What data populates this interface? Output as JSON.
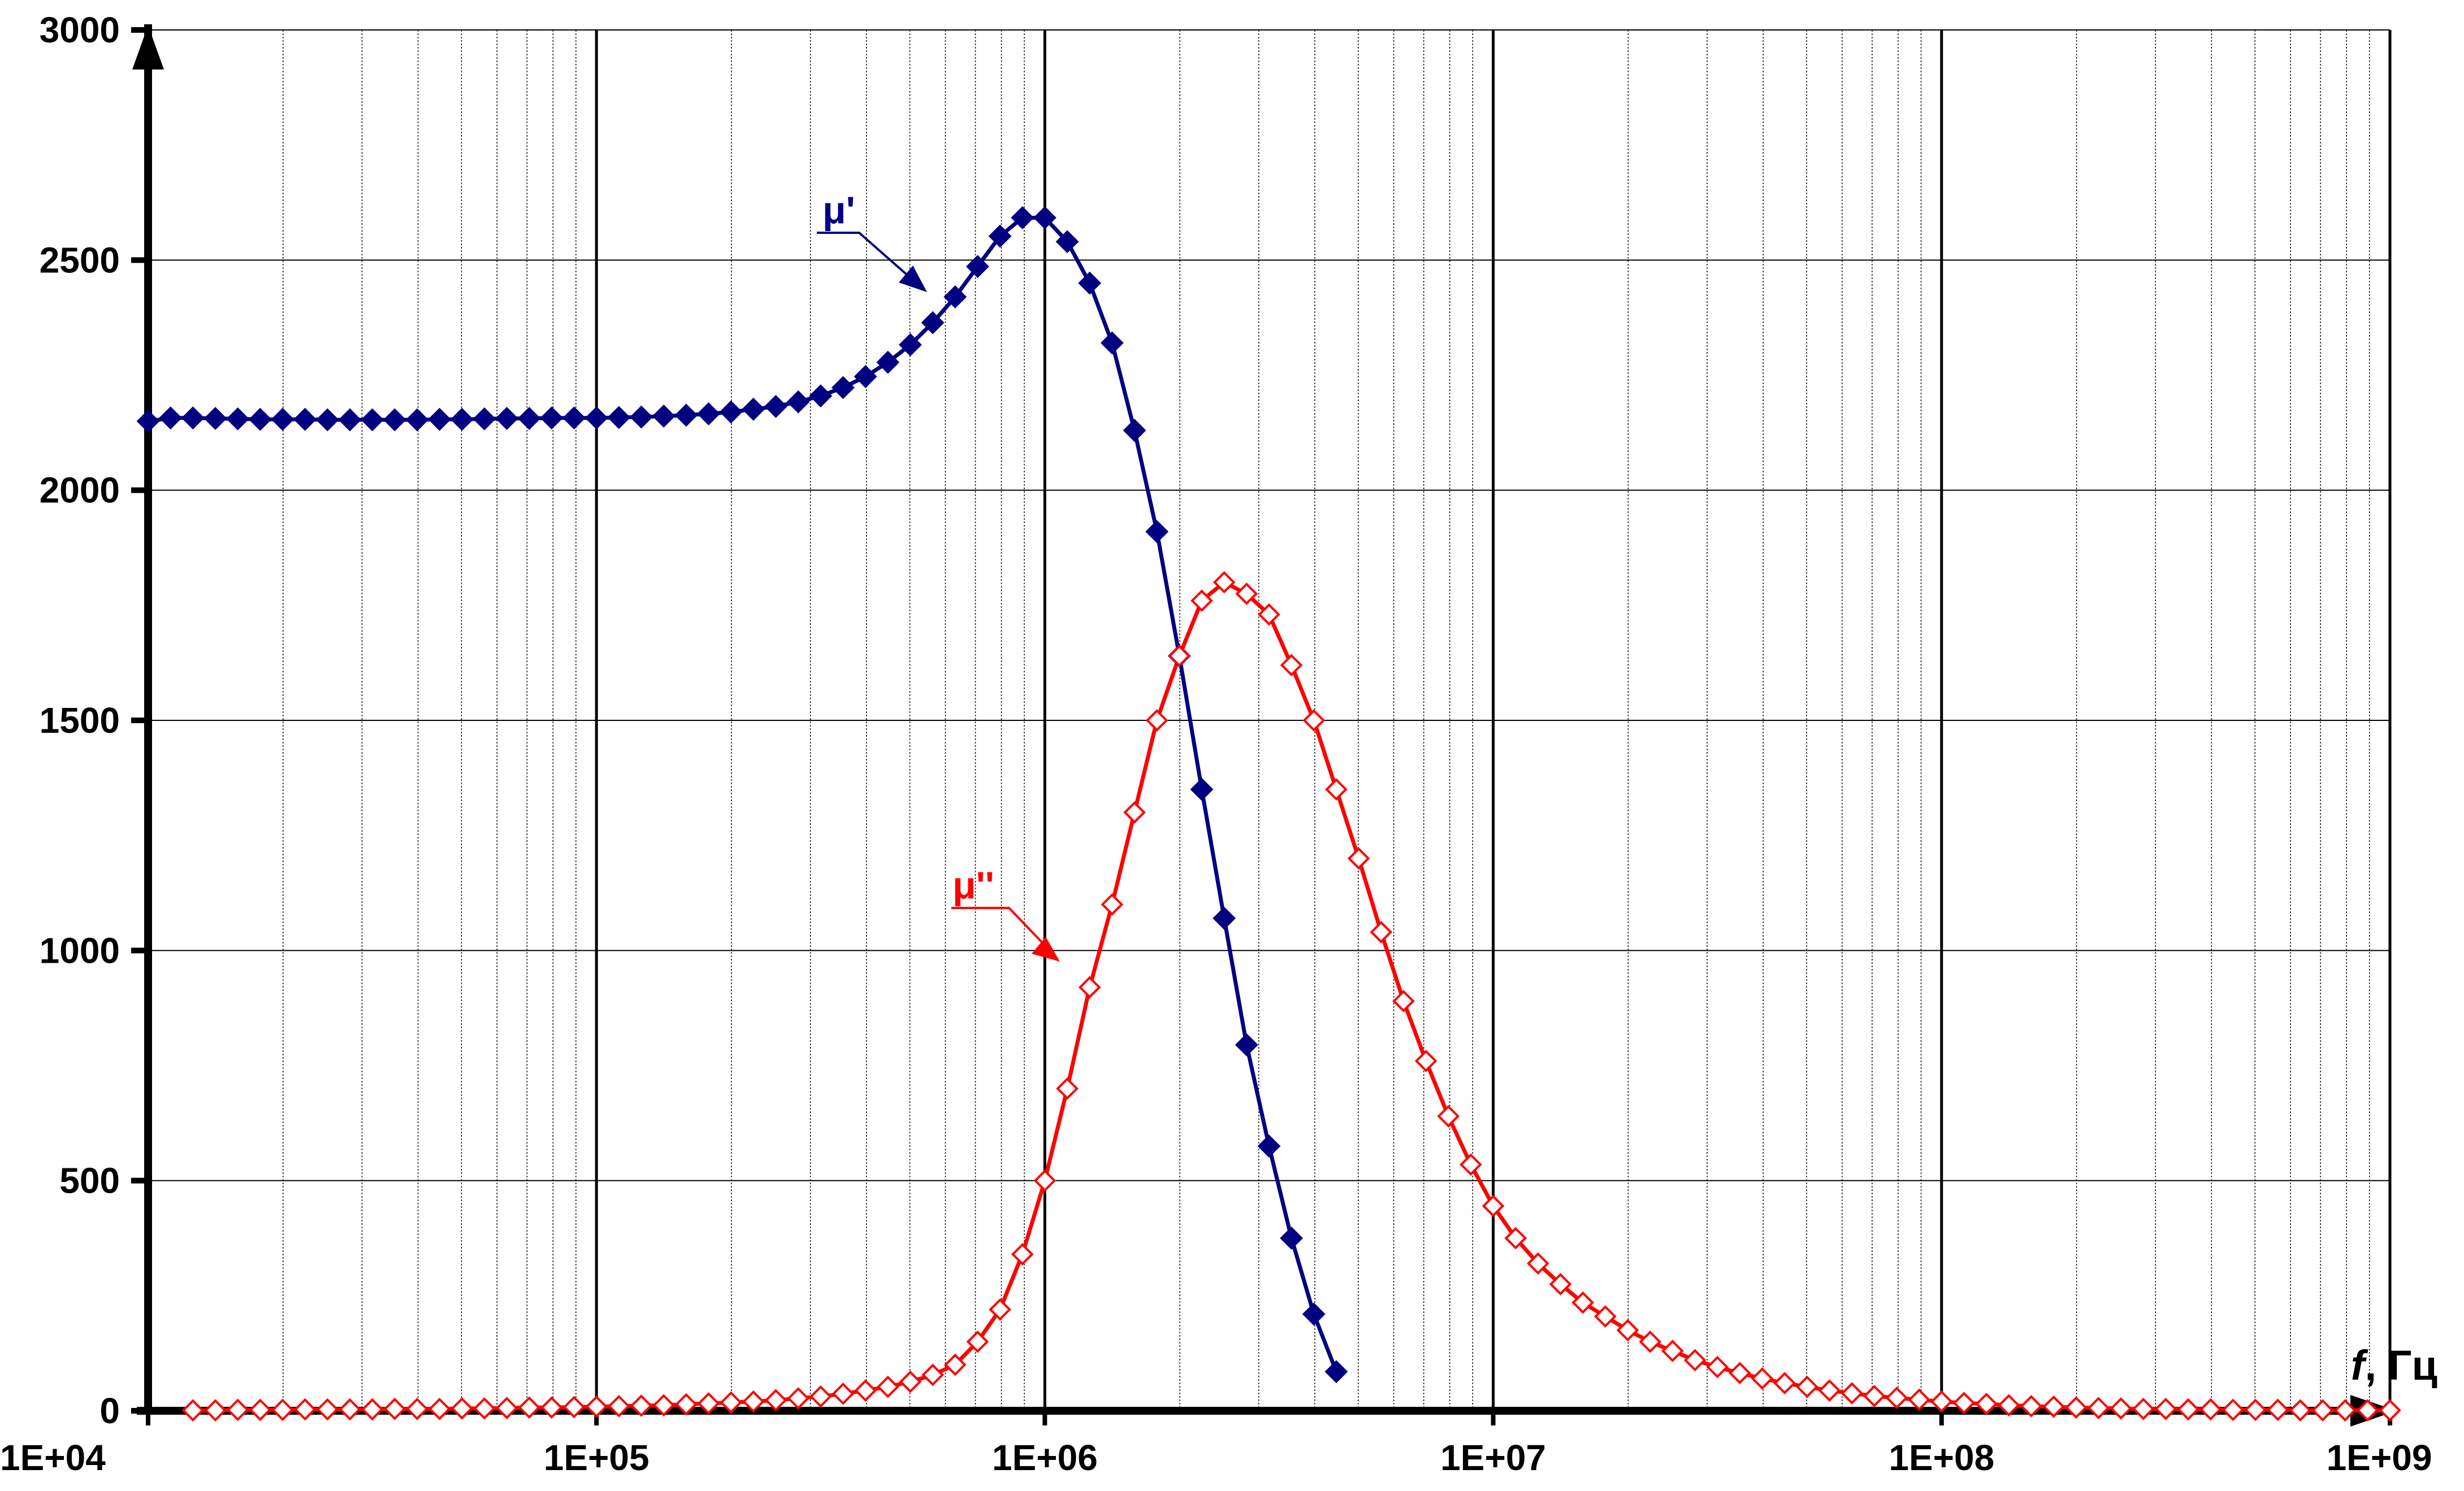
{
  "chart_data": {
    "type": "line",
    "title": "",
    "xlabel": "f, Гц",
    "xlabel_parts": {
      "italic": "f",
      "rest": ", Гц"
    },
    "ylabel": "",
    "x_scale": "log",
    "xlim": [
      10000,
      1000000000
    ],
    "ylim": [
      0,
      3000
    ],
    "x_tick_labels": [
      "1E+04",
      "1E+05",
      "1E+06",
      "1E+07",
      "1E+08",
      "1E+09"
    ],
    "x_tick_values": [
      10000,
      100000,
      1000000,
      10000000,
      100000000,
      1000000000
    ],
    "y_tick_labels": [
      "0",
      "500",
      "1000",
      "1500",
      "2000",
      "2500",
      "3000"
    ],
    "y_tick_values": [
      0,
      500,
      1000,
      1500,
      2000,
      2500,
      3000
    ],
    "grid": true,
    "legend": "none",
    "series": [
      {
        "name": "μ'",
        "color": "#000080",
        "marker": "filled-diamond",
        "x_log10": [
          4.0,
          4.05,
          4.1,
          4.15,
          4.2,
          4.25,
          4.3,
          4.35,
          4.4,
          4.45,
          4.5,
          4.55,
          4.6,
          4.65,
          4.7,
          4.75,
          4.8,
          4.85,
          4.9,
          4.95,
          5.0,
          5.05,
          5.1,
          5.15,
          5.2,
          5.25,
          5.3,
          5.35,
          5.4,
          5.45,
          5.5,
          5.55,
          5.6,
          5.65,
          5.7,
          5.75,
          5.8,
          5.85,
          5.9,
          5.95,
          6.0,
          6.05,
          6.1,
          6.15,
          6.2,
          6.25,
          6.3,
          6.35,
          6.4,
          6.45,
          6.5,
          6.55,
          6.6,
          6.65
        ],
        "values": [
          2150,
          2157,
          2157,
          2156,
          2155,
          2154,
          2154,
          2154,
          2153,
          2153,
          2153,
          2153,
          2153,
          2154,
          2154,
          2155,
          2156,
          2156,
          2157,
          2157,
          2157,
          2158,
          2159,
          2161,
          2163,
          2166,
          2170,
          2176,
          2182,
          2192,
          2205,
          2223,
          2247,
          2278,
          2316,
          2364,
          2420,
          2486,
          2552,
          2592,
          2592,
          2540,
          2450,
          2320,
          2130,
          1910,
          1640,
          1350,
          1070,
          795,
          575,
          375,
          210,
          85
        ]
      },
      {
        "name": "μ''",
        "color": "#ff0000",
        "marker": "open-diamond",
        "x_log10": [
          4.1,
          4.15,
          4.2,
          4.25,
          4.3,
          4.35,
          4.4,
          4.45,
          4.5,
          4.55,
          4.6,
          4.65,
          4.7,
          4.75,
          4.8,
          4.85,
          4.9,
          4.95,
          5.0,
          5.05,
          5.1,
          5.15,
          5.2,
          5.25,
          5.3,
          5.35,
          5.4,
          5.45,
          5.5,
          5.55,
          5.6,
          5.65,
          5.7,
          5.75,
          5.8,
          5.85,
          5.9,
          5.95,
          6.0,
          6.05,
          6.1,
          6.15,
          6.2,
          6.25,
          6.3,
          6.35,
          6.4,
          6.45,
          6.5,
          6.55,
          6.6,
          6.65,
          6.7,
          6.75,
          6.8,
          6.85,
          6.9,
          6.95,
          7.0,
          7.05,
          7.1,
          7.15,
          7.2,
          7.25,
          7.3,
          7.35,
          7.4,
          7.45,
          7.5,
          7.55,
          7.6,
          7.65,
          7.7,
          7.75,
          7.8,
          7.85,
          7.9,
          7.95,
          8.0,
          8.05,
          8.1,
          8.15,
          8.2,
          8.25,
          8.3,
          8.35,
          8.4,
          8.45,
          8.5,
          8.55,
          8.6,
          8.65,
          8.7,
          8.75,
          8.8,
          8.85,
          8.9,
          8.95,
          9.0
        ],
        "values": [
          1,
          1,
          2,
          2,
          2,
          3,
          3,
          3,
          3,
          4,
          4,
          4,
          5,
          5,
          6,
          7,
          7,
          8,
          9,
          10,
          11,
          12,
          14,
          16,
          18,
          20,
          23,
          27,
          31,
          37,
          44,
          52,
          63,
          78,
          100,
          150,
          220,
          340,
          500,
          700,
          920,
          1100,
          1300,
          1500,
          1640,
          1760,
          1800,
          1775,
          1730,
          1620,
          1500,
          1350,
          1200,
          1040,
          890,
          760,
          640,
          535,
          445,
          375,
          320,
          275,
          235,
          205,
          175,
          150,
          130,
          110,
          95,
          82,
          70,
          60,
          52,
          44,
          38,
          32,
          28,
          24,
          20,
          17,
          15,
          12,
          10,
          9,
          7,
          6,
          5,
          4,
          4,
          3,
          3,
          2,
          2,
          2,
          1,
          1,
          1,
          1,
          1
        ]
      }
    ]
  },
  "labels": {
    "mu_prime": "μ'",
    "mu_double_prime": "μ''"
  }
}
